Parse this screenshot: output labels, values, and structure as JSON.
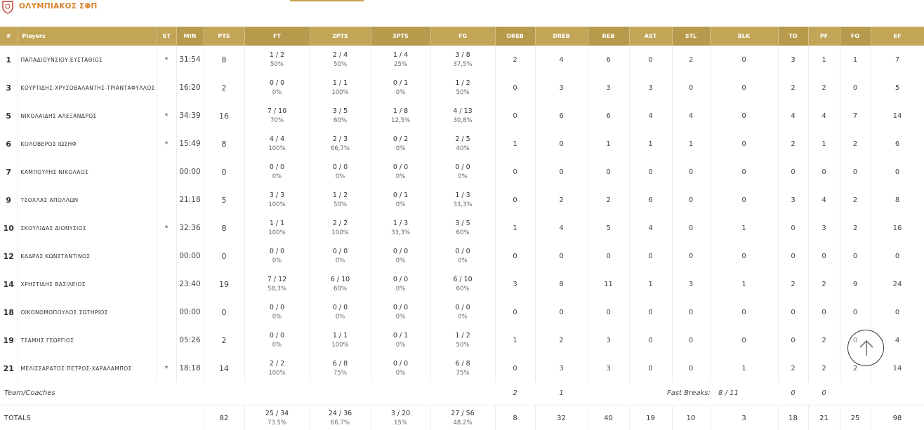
{
  "header": {
    "team_name": "ΟΛΥΜΠΙΑΚΟΣ ΣΦΠ",
    "accent_color": "#c2a557",
    "team_color": "#d9822b"
  },
  "columns": [
    "#",
    "Players",
    "ST",
    "MIN",
    "PTS",
    "FT",
    "2PTS",
    "3PTS",
    "FG",
    "OREB",
    "DREB",
    "REB",
    "AST",
    "STL",
    "BLK",
    "TO",
    "PF",
    "FO",
    "EF"
  ],
  "players": [
    {
      "num": "1",
      "name": "ΠΑΠΑΔΙΟΥΝΣΙΟΥ ΕΥΣΤΑΘΙΟΣ",
      "st": "*",
      "min": "31:54",
      "pts": "8",
      "ft": "1 / 2",
      "ft_pct": "50%",
      "p2": "2 / 4",
      "p2_pct": "50%",
      "p3": "1 / 4",
      "p3_pct": "25%",
      "fg": "3 / 8",
      "fg_pct": "37,5%",
      "oreb": "2",
      "dreb": "4",
      "reb": "6",
      "ast": "0",
      "stl": "2",
      "blk": "0",
      "to": "3",
      "pf": "1",
      "fo": "1",
      "ef": "7"
    },
    {
      "num": "3",
      "name": "ΚΟΥΡΤΙΔΗΣ ΧΡΥΣΟΒΑΛΑΝΤΗΣ-ΤΡΙΑΝΤΑΦΥΛΛΟΣ",
      "st": "",
      "min": "16:20",
      "pts": "2",
      "ft": "0 / 0",
      "ft_pct": "0%",
      "p2": "1 / 1",
      "p2_pct": "100%",
      "p3": "0 / 1",
      "p3_pct": "0%",
      "fg": "1 / 2",
      "fg_pct": "50%",
      "oreb": "0",
      "dreb": "3",
      "reb": "3",
      "ast": "3",
      "stl": "0",
      "blk": "0",
      "to": "2",
      "pf": "2",
      "fo": "0",
      "ef": "5"
    },
    {
      "num": "5",
      "name": "ΝΙΚΟΛΑΙΔΗΣ ΑΛΕΞΑΝΔΡΟΣ",
      "st": "*",
      "min": "34:39",
      "pts": "16",
      "ft": "7 / 10",
      "ft_pct": "70%",
      "p2": "3 / 5",
      "p2_pct": "60%",
      "p3": "1 / 8",
      "p3_pct": "12,5%",
      "fg": "4 / 13",
      "fg_pct": "30,8%",
      "oreb": "0",
      "dreb": "6",
      "reb": "6",
      "ast": "4",
      "stl": "4",
      "blk": "0",
      "to": "4",
      "pf": "4",
      "fo": "7",
      "ef": "14"
    },
    {
      "num": "6",
      "name": "ΚΟΛΟΒΕΡΟΣ ΙΩΣΗΦ",
      "st": "*",
      "min": "15:49",
      "pts": "8",
      "ft": "4 / 4",
      "ft_pct": "100%",
      "p2": "2 / 3",
      "p2_pct": "66,7%",
      "p3": "0 / 2",
      "p3_pct": "0%",
      "fg": "2 / 5",
      "fg_pct": "40%",
      "oreb": "1",
      "dreb": "0",
      "reb": "1",
      "ast": "1",
      "stl": "1",
      "blk": "0",
      "to": "2",
      "pf": "1",
      "fo": "2",
      "ef": "6"
    },
    {
      "num": "7",
      "name": "ΚΑΜΠΟΥΡΗΣ ΝΙΚΟΛΑΟΣ",
      "st": "",
      "min": "00:00",
      "pts": "0",
      "ft": "0 / 0",
      "ft_pct": "0%",
      "p2": "0 / 0",
      "p2_pct": "0%",
      "p3": "0 / 0",
      "p3_pct": "0%",
      "fg": "0 / 0",
      "fg_pct": "0%",
      "oreb": "0",
      "dreb": "0",
      "reb": "0",
      "ast": "0",
      "stl": "0",
      "blk": "0",
      "to": "0",
      "pf": "0",
      "fo": "0",
      "ef": "0"
    },
    {
      "num": "9",
      "name": "ΤΣΟΧΛΑΣ ΑΠΟΛΛΩΝ",
      "st": "",
      "min": "21:18",
      "pts": "5",
      "ft": "3 / 3",
      "ft_pct": "100%",
      "p2": "1 / 2",
      "p2_pct": "50%",
      "p3": "0 / 1",
      "p3_pct": "0%",
      "fg": "1 / 3",
      "fg_pct": "33,3%",
      "oreb": "0",
      "dreb": "2",
      "reb": "2",
      "ast": "6",
      "stl": "0",
      "blk": "0",
      "to": "3",
      "pf": "4",
      "fo": "2",
      "ef": "8"
    },
    {
      "num": "10",
      "name": "ΣΚΟΥΛΙΔΑΣ ΔΙΟΝΥΣΙΟΣ",
      "st": "*",
      "min": "32:36",
      "pts": "8",
      "ft": "1 / 1",
      "ft_pct": "100%",
      "p2": "2 / 2",
      "p2_pct": "100%",
      "p3": "1 / 3",
      "p3_pct": "33,3%",
      "fg": "3 / 5",
      "fg_pct": "60%",
      "oreb": "1",
      "dreb": "4",
      "reb": "5",
      "ast": "4",
      "stl": "0",
      "blk": "1",
      "to": "0",
      "pf": "3",
      "fo": "2",
      "ef": "16"
    },
    {
      "num": "12",
      "name": "ΚΑΔΡΑΣ ΚΩΝΣΤΑΝΤΙΝΟΣ",
      "st": "",
      "min": "00:00",
      "pts": "0",
      "ft": "0 / 0",
      "ft_pct": "0%",
      "p2": "0 / 0",
      "p2_pct": "0%",
      "p3": "0 / 0",
      "p3_pct": "0%",
      "fg": "0 / 0",
      "fg_pct": "0%",
      "oreb": "0",
      "dreb": "0",
      "reb": "0",
      "ast": "0",
      "stl": "0",
      "blk": "0",
      "to": "0",
      "pf": "0",
      "fo": "0",
      "ef": "0"
    },
    {
      "num": "14",
      "name": "ΧΡΗΣΤΙΔΗΣ ΒΑΣΙΛΕΙΟΣ",
      "st": "",
      "min": "23:40",
      "pts": "19",
      "ft": "7 / 12",
      "ft_pct": "58,3%",
      "p2": "6 / 10",
      "p2_pct": "60%",
      "p3": "0 / 0",
      "p3_pct": "0%",
      "fg": "6 / 10",
      "fg_pct": "60%",
      "oreb": "3",
      "dreb": "8",
      "reb": "11",
      "ast": "1",
      "stl": "3",
      "blk": "1",
      "to": "2",
      "pf": "2",
      "fo": "9",
      "ef": "24"
    },
    {
      "num": "18",
      "name": "ΟΙΚΟΝΟΜΟΠΟΥΛΟΣ ΣΩΤΗΡΙΟΣ",
      "st": "",
      "min": "00:00",
      "pts": "0",
      "ft": "0 / 0",
      "ft_pct": "0%",
      "p2": "0 / 0",
      "p2_pct": "0%",
      "p3": "0 / 0",
      "p3_pct": "0%",
      "fg": "0 / 0",
      "fg_pct": "0%",
      "oreb": "0",
      "dreb": "0",
      "reb": "0",
      "ast": "0",
      "stl": "0",
      "blk": "0",
      "to": "0",
      "pf": "0",
      "fo": "0",
      "ef": "0"
    },
    {
      "num": "19",
      "name": "ΤΣΑΜΗΣ ΓΕΩΡΓΙΟΣ",
      "st": "",
      "min": "05:26",
      "pts": "2",
      "ft": "0 / 0",
      "ft_pct": "0%",
      "p2": "1 / 1",
      "p2_pct": "100%",
      "p3": "0 / 1",
      "p3_pct": "0%",
      "fg": "1 / 2",
      "fg_pct": "50%",
      "oreb": "1",
      "dreb": "2",
      "reb": "3",
      "ast": "0",
      "stl": "0",
      "blk": "0",
      "to": "0",
      "pf": "2",
      "fo": "0",
      "ef": "4"
    },
    {
      "num": "21",
      "name": "ΜΕΛΙΣΣΑΡΑΤΟΣ ΠΕΤΡΟΣ-ΧΑΡΑΛΑΜΠΟΣ",
      "st": "*",
      "min": "18:18",
      "pts": "14",
      "ft": "2 / 2",
      "ft_pct": "100%",
      "p2": "6 / 8",
      "p2_pct": "75%",
      "p3": "0 / 0",
      "p3_pct": "0%",
      "fg": "6 / 8",
      "fg_pct": "75%",
      "oreb": "0",
      "dreb": "3",
      "reb": "3",
      "ast": "0",
      "stl": "0",
      "blk": "1",
      "to": "2",
      "pf": "2",
      "fo": "2",
      "ef": "14"
    }
  ],
  "team_coaches": {
    "label": "Team/Coaches",
    "oreb": "2",
    "dreb": "1",
    "fast_breaks_label": "Fast Breaks:",
    "fast_breaks_value": "8 / 11",
    "to": "0",
    "pf": "0"
  },
  "totals": {
    "label": "TOTALS",
    "pts": "82",
    "ft": "25 / 34",
    "ft_pct": "73.5%",
    "p2": "24 / 36",
    "p2_pct": "66.7%",
    "p3": "3 / 20",
    "p3_pct": "15%",
    "fg": "27 / 56",
    "fg_pct": "48.2%",
    "oreb": "8",
    "dreb": "32",
    "reb": "40",
    "ast": "19",
    "stl": "10",
    "blk": "3",
    "to": "18",
    "pf": "21",
    "fo": "25",
    "ef": "98"
  },
  "scroll_top": {
    "icon": "arrow-up-icon"
  }
}
